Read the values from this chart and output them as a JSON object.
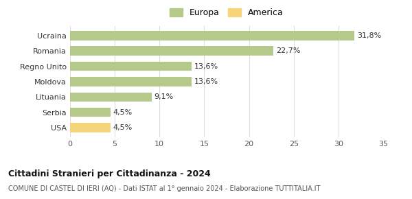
{
  "categories": [
    "USA",
    "Serbia",
    "Lituania",
    "Moldova",
    "Regno Unito",
    "Romania",
    "Ucraina"
  ],
  "values": [
    4.5,
    4.5,
    9.1,
    13.6,
    13.6,
    22.7,
    31.8
  ],
  "labels": [
    "4,5%",
    "4,5%",
    "9,1%",
    "13,6%",
    "13,6%",
    "22,7%",
    "31,8%"
  ],
  "colors": [
    "#f5d47a",
    "#b5c98a",
    "#b5c98a",
    "#b5c98a",
    "#b5c98a",
    "#b5c98a",
    "#b5c98a"
  ],
  "europa_color": "#b5c98a",
  "america_color": "#f5d47a",
  "xlim": [
    0,
    35
  ],
  "xticks": [
    0,
    5,
    10,
    15,
    20,
    25,
    30,
    35
  ],
  "title": "Cittadini Stranieri per Cittadinanza - 2024",
  "subtitle": "COMUNE DI CASTEL DI IERI (AQ) - Dati ISTAT al 1° gennaio 2024 - Elaborazione TUTTITALIA.IT",
  "legend_europa": "Europa",
  "legend_america": "America",
  "background_color": "#ffffff",
  "grid_color": "#dddddd",
  "bar_height": 0.6
}
